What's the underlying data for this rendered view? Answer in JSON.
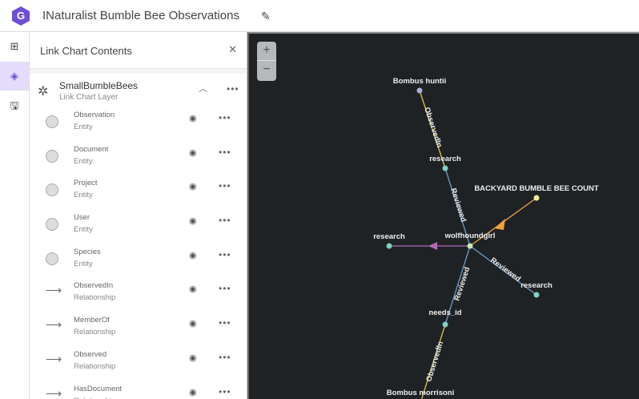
{
  "header": {
    "title": "INaturalist Bumble Bee Observations",
    "logo_text": "G"
  },
  "panel": {
    "title": "Link Chart Contents",
    "layer": {
      "name": "SmallBumbleBees",
      "type": "Link Chart Layer"
    },
    "items": [
      {
        "name": "Observation",
        "type": "Entity",
        "icon": "circle"
      },
      {
        "name": "Document",
        "type": "Entity",
        "icon": "circle"
      },
      {
        "name": "Project",
        "type": "Entity",
        "icon": "circle"
      },
      {
        "name": "User",
        "type": "Entity",
        "icon": "circle"
      },
      {
        "name": "Species",
        "type": "Entity",
        "icon": "circle"
      },
      {
        "name": "ObservedIn",
        "type": "Relationship",
        "icon": "arrow"
      },
      {
        "name": "MemberOf",
        "type": "Relationship",
        "icon": "arrow"
      },
      {
        "name": "Observed",
        "type": "Relationship",
        "icon": "arrow"
      },
      {
        "name": "HasDocument",
        "type": "Relationship",
        "icon": "arrow"
      }
    ]
  },
  "map": {
    "zoom_in": "+",
    "zoom_out": "−",
    "nodes": {
      "huntii": "Bombus huntii",
      "research1": "research",
      "backyard": "BACKYARD BUMBLE BEE COUNT",
      "wolf": "wolfhoundgirl",
      "research2": "research",
      "research3": "research",
      "needs": "needs_id",
      "morrisoni": "Bombus morrisoni"
    },
    "edges": {
      "e1": "ObservedIn",
      "e2": "Reviewed",
      "e3": "Reviewed",
      "e4": "Reviewed",
      "e5": "ObservedIn"
    },
    "colors": {
      "background": "#1f2225",
      "observed_in": "#d8c84a",
      "reviewed": "#6a9bc8",
      "member_of": "#f0a040",
      "observed": "#b46ab8",
      "node_teal": "#7fd1c0",
      "node_yellow": "#f6f0a0"
    }
  }
}
